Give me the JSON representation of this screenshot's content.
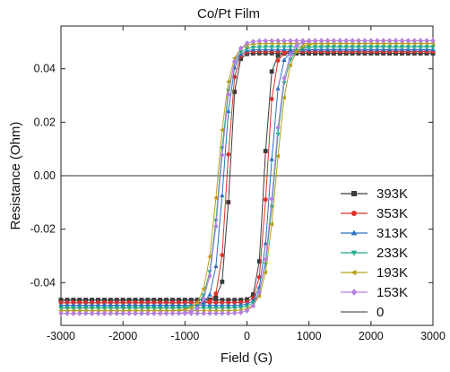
{
  "chart_data": {
    "type": "line",
    "title": "Co/Pt Film",
    "xlabel": "Field (G)",
    "ylabel": "Resistance (Ohm)",
    "xlim": [
      -3000,
      3000
    ],
    "ylim": [
      -0.056,
      0.056
    ],
    "xticks": [
      "-3000",
      "-2000",
      "-1000",
      "0",
      "1000",
      "2000",
      "3000"
    ],
    "yticks": [
      "-0.04",
      "-0.02",
      "0.00",
      "0.02",
      "0.04"
    ],
    "ytick_values": [
      -0.04,
      -0.02,
      0.0,
      0.02,
      0.04
    ],
    "xtick_values": [
      -3000,
      -2000,
      -1000,
      0,
      1000,
      2000,
      3000
    ],
    "grid": false,
    "legend_position": "bottom-right",
    "reference_line": {
      "name": "0",
      "y": 0.0,
      "color": "#333333"
    },
    "series": [
      {
        "name": "393K",
        "color": "#3a3a3a",
        "marker": "square",
        "sat_low": -0.0465,
        "sat_high": 0.0458,
        "hc": 280,
        "width": 95
      },
      {
        "name": "353K",
        "color": "#e0302a",
        "marker": "circle",
        "sat_low": -0.0475,
        "sat_high": 0.0465,
        "hc": 320,
        "width": 110
      },
      {
        "name": "313K",
        "color": "#2f6fbf",
        "marker": "triangle-up",
        "sat_low": -0.0485,
        "sat_high": 0.0472,
        "hc": 380,
        "width": 140
      },
      {
        "name": "233K",
        "color": "#22a98a",
        "marker": "triangle-down",
        "sat_low": -0.0495,
        "sat_high": 0.0482,
        "hc": 440,
        "width": 175
      },
      {
        "name": "193K",
        "color": "#b8a019",
        "marker": "triangle-left",
        "sat_low": -0.0505,
        "sat_high": 0.0495,
        "hc": 470,
        "width": 190
      },
      {
        "name": "153K",
        "color": "#b47ee0",
        "marker": "diamond",
        "sat_low": -0.0515,
        "sat_high": 0.0505,
        "hc": 430,
        "width": 185
      }
    ]
  }
}
